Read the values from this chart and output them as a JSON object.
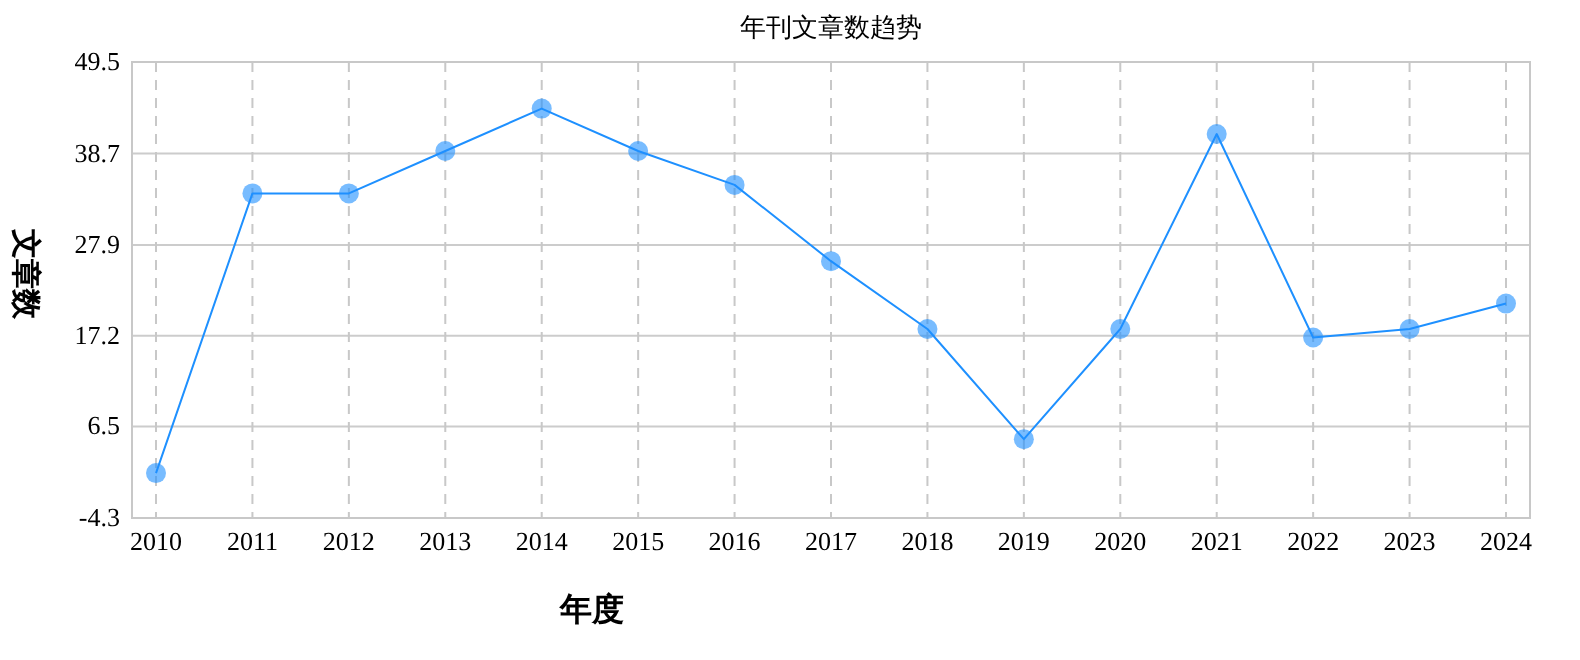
{
  "chart_data": {
    "type": "line",
    "title": "年刊文章数趋势",
    "xlabel": "年度",
    "ylabel": "文章数",
    "categories": [
      "2010",
      "2011",
      "2012",
      "2013",
      "2014",
      "2015",
      "2016",
      "2017",
      "2018",
      "2019",
      "2020",
      "2021",
      "2022",
      "2023",
      "2024"
    ],
    "series": [
      {
        "color": "#1e90ff",
        "values": [
          1,
          34,
          34,
          39,
          44,
          39,
          35,
          26,
          18,
          5,
          18,
          41,
          17,
          18,
          21
        ]
      }
    ],
    "ylim": [
      -4.3,
      49.5
    ],
    "yticks": [
      -4.3,
      6.5,
      17.2,
      27.9,
      38.7,
      49.5
    ],
    "grid": true,
    "marker": "circle",
    "line_style": "solid"
  }
}
